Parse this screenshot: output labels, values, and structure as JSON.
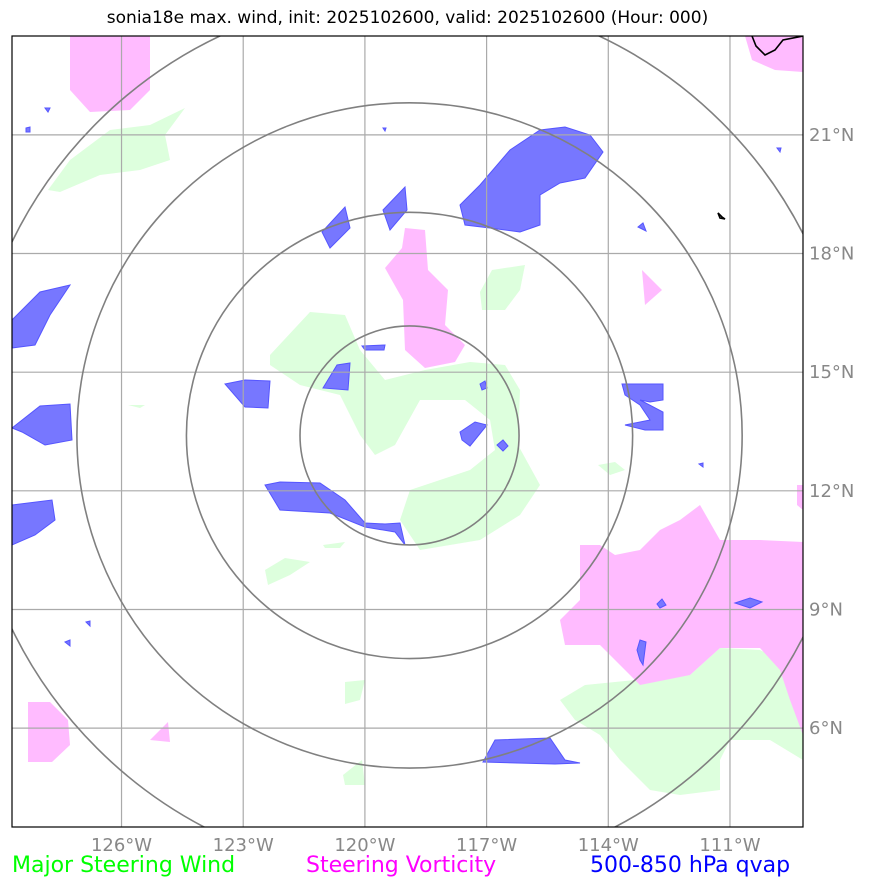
{
  "title": "sonia18e max. wind, init: 2025102600, valid: 2025102600 (Hour: 000)",
  "colors": {
    "steering_wind": "#00ff00",
    "steering_vorticity": "#ff00ff",
    "qvap": "#0000ff",
    "wind_fill": "#ddffdd",
    "vort_fill": "#ffbbff",
    "qvap_fill": "#7777ff",
    "gridline": "#aaaaaa",
    "range_ring": "#808080",
    "coastline": "#000000"
  },
  "map": {
    "lon_range": [
      -128.7,
      -109.2
    ],
    "lat_range": [
      3.5,
      23.5
    ],
    "longitude_ticks": [
      {
        "value": -126,
        "label": "126°W"
      },
      {
        "value": -123,
        "label": "123°W"
      },
      {
        "value": -120,
        "label": "120°W"
      },
      {
        "value": -117,
        "label": "117°W"
      },
      {
        "value": -114,
        "label": "114°W"
      },
      {
        "value": -111,
        "label": "111°W"
      }
    ],
    "latitude_ticks": [
      {
        "value": 21,
        "label": "21°N"
      },
      {
        "value": 18,
        "label": "18°N"
      },
      {
        "value": 15,
        "label": "15°N"
      },
      {
        "value": 12,
        "label": "12°N"
      },
      {
        "value": 9,
        "label": "9°N"
      },
      {
        "value": 6,
        "label": "6°N"
      }
    ],
    "storm_center": {
      "lon": -118.9,
      "lat": 13.4
    },
    "range_ring_radii_deg": [
      2.7,
      5.5,
      8.2,
      10.9
    ],
    "gridlines": true
  },
  "legend": [
    {
      "label": "Major Steering Wind",
      "color": "#00ff00"
    },
    {
      "label": "Steering Vorticity",
      "color": "#ff00ff"
    },
    {
      "label": "500-850 hPa qvap",
      "color": "#0000ff"
    }
  ]
}
